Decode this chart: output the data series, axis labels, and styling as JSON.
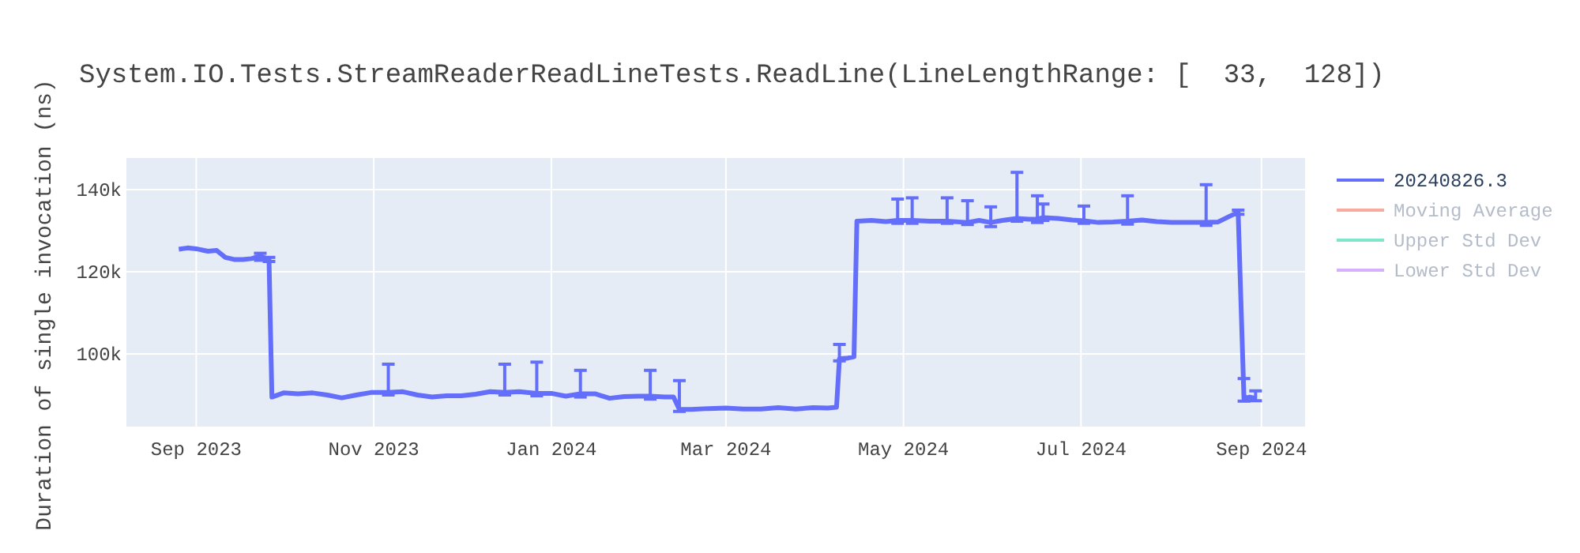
{
  "chart_data": {
    "type": "line",
    "title": "System.IO.Tests.StreamReaderReadLineTests.ReadLine(LineLengthRange: [  33,  128])",
    "ylabel": "Duration of single invocation (ns)",
    "xlim": [
      "2023-08-08",
      "2024-09-16"
    ],
    "xticks": [
      {
        "value": "2023-09-01",
        "label": "Sep 2023"
      },
      {
        "value": "2023-11-01",
        "label": "Nov 2023"
      },
      {
        "value": "2024-01-01",
        "label": "Jan 2024"
      },
      {
        "value": "2024-03-01",
        "label": "Mar 2024"
      },
      {
        "value": "2024-05-01",
        "label": "May 2024"
      },
      {
        "value": "2024-07-01",
        "label": "Jul 2024"
      },
      {
        "value": "2024-09-01",
        "label": "Sep 2024"
      }
    ],
    "ylim": [
      82300,
      147700
    ],
    "yticks": [
      {
        "value": 100000,
        "label": "100k"
      },
      {
        "value": 120000,
        "label": "120k"
      },
      {
        "value": 140000,
        "label": "140k"
      }
    ],
    "grid": true,
    "legend": "top right",
    "marker": "none",
    "series": [
      {
        "name": "20240826.3",
        "color": "#636efa",
        "x": [
          "2023-08-26",
          "2023-08-29",
          "2023-09-01",
          "2023-09-05",
          "2023-09-08",
          "2023-09-11",
          "2023-09-14",
          "2023-09-17",
          "2023-09-20",
          "2023-09-23",
          "2023-09-26",
          "2023-09-27",
          "2023-10-01",
          "2023-10-06",
          "2023-10-11",
          "2023-10-16",
          "2023-10-21",
          "2023-10-26",
          "2023-10-31",
          "2023-11-06",
          "2023-11-11",
          "2023-11-16",
          "2023-11-21",
          "2023-11-26",
          "2023-12-01",
          "2023-12-06",
          "2023-12-11",
          "2023-12-16",
          "2023-12-21",
          "2023-12-27",
          "2024-01-01",
          "2024-01-06",
          "2024-01-11",
          "2024-01-16",
          "2024-01-21",
          "2024-01-26",
          "2024-01-31",
          "2024-02-04",
          "2024-02-09",
          "2024-02-12",
          "2024-02-14",
          "2024-02-18",
          "2024-02-24",
          "2024-03-01",
          "2024-03-07",
          "2024-03-13",
          "2024-03-19",
          "2024-03-25",
          "2024-03-31",
          "2024-04-05",
          "2024-04-08",
          "2024-04-09",
          "2024-04-12",
          "2024-04-14",
          "2024-04-15",
          "2024-04-20",
          "2024-04-25",
          "2024-04-29",
          "2024-05-04",
          "2024-05-10",
          "2024-05-16",
          "2024-05-23",
          "2024-05-27",
          "2024-05-31",
          "2024-06-04",
          "2024-06-09",
          "2024-06-13",
          "2024-06-16",
          "2024-06-18",
          "2024-06-23",
          "2024-06-28",
          "2024-07-02",
          "2024-07-07",
          "2024-07-12",
          "2024-07-17",
          "2024-07-22",
          "2024-07-27",
          "2024-08-01",
          "2024-08-06",
          "2024-08-10",
          "2024-08-13",
          "2024-08-17",
          "2024-08-21",
          "2024-08-24",
          "2024-08-26",
          "2024-08-28",
          "2024-08-30"
        ],
        "values": [
          125500,
          125800,
          125600,
          125000,
          125200,
          123500,
          123000,
          123000,
          123200,
          123800,
          123000,
          89500,
          90500,
          90300,
          90500,
          90000,
          89300,
          90000,
          90600,
          90600,
          90800,
          90000,
          89500,
          89800,
          89800,
          90200,
          90800,
          90600,
          90800,
          90400,
          90400,
          89700,
          90300,
          90300,
          89200,
          89600,
          89700,
          89700,
          89500,
          89500,
          86500,
          86500,
          86700,
          86800,
          86600,
          86600,
          86900,
          86600,
          86900,
          86800,
          87000,
          98800,
          99000,
          99300,
          132300,
          132500,
          132200,
          132500,
          132500,
          132300,
          132300,
          132000,
          132500,
          132000,
          132500,
          133000,
          132800,
          132800,
          133200,
          133000,
          132600,
          132400,
          132000,
          132100,
          132300,
          132600,
          132200,
          132000,
          132000,
          132000,
          132000,
          132100,
          133500,
          134500,
          89200,
          89500,
          89200
        ],
        "errors": [
          null,
          null,
          null,
          null,
          null,
          null,
          null,
          null,
          null,
          [
            122800,
            124500
          ],
          [
            122500,
            123500
          ],
          null,
          null,
          null,
          null,
          null,
          null,
          null,
          null,
          [
            90000,
            97500
          ],
          null,
          null,
          null,
          null,
          null,
          null,
          null,
          [
            90000,
            97500
          ],
          null,
          [
            89800,
            98000
          ],
          null,
          null,
          [
            89500,
            96000
          ],
          null,
          null,
          null,
          null,
          [
            89000,
            96000
          ],
          null,
          null,
          [
            86000,
            93500
          ],
          null,
          null,
          null,
          null,
          null,
          null,
          null,
          null,
          null,
          null,
          [
            98300,
            102300
          ],
          null,
          null,
          null,
          null,
          null,
          [
            131800,
            137700
          ],
          [
            131800,
            138000
          ],
          null,
          [
            131800,
            138000
          ],
          [
            131500,
            137300
          ],
          null,
          [
            131000,
            135800
          ],
          null,
          [
            132300,
            144200
          ],
          null,
          [
            132000,
            138500
          ],
          [
            132500,
            136500
          ],
          null,
          null,
          [
            131800,
            136000
          ],
          null,
          null,
          [
            131600,
            138500
          ],
          null,
          null,
          null,
          null,
          null,
          [
            131300,
            141200
          ],
          null,
          null,
          [
            134000,
            135000
          ],
          [
            88500,
            94000
          ],
          null,
          [
            88600,
            91000
          ]
        ]
      },
      {
        "name": "Moving Average",
        "color": "#f7aa9d"
      },
      {
        "name": "Upper Std Dev",
        "color": "#80e5cb"
      },
      {
        "name": "Lower Std Dev",
        "color": "#d5b1fc"
      }
    ]
  }
}
